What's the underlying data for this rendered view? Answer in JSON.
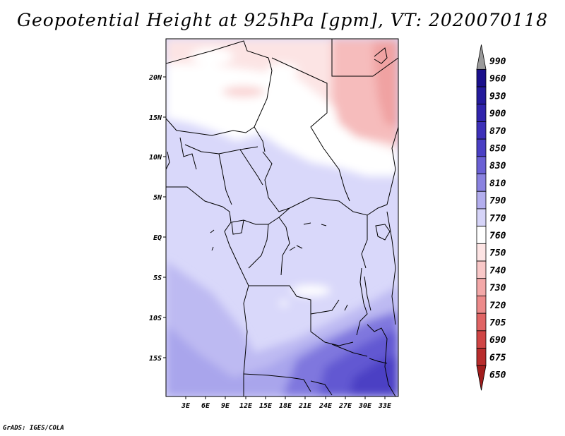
{
  "title": "Geopotential Height at 925hPa [gpm], VT: 2020070118",
  "footer": "GrADS: IGES/COLA",
  "lat_labels": [
    "20N",
    "15N",
    "10N",
    "5N",
    "EQ",
    "5S",
    "10S",
    "15S"
  ],
  "lon_labels": [
    "3E",
    "6E",
    "9E",
    "12E",
    "15E",
    "18E",
    "21E",
    "24E",
    "27E",
    "30E",
    "33E"
  ],
  "colorbar": {
    "levels": [
      "990",
      "960",
      "930",
      "900",
      "870",
      "850",
      "830",
      "810",
      "790",
      "770",
      "760",
      "750",
      "740",
      "730",
      "720",
      "705",
      "690",
      "675",
      "650"
    ],
    "colors": [
      "#9a9a9a",
      "#1a0f8c",
      "#241a9c",
      "#3024ac",
      "#3d30b9",
      "#4a3fc4",
      "#6a60d4",
      "#8a82e0",
      "#b3aeee",
      "#d6d4f8",
      "#ffffff",
      "#fde4e4",
      "#f9c8c8",
      "#f3a8a8",
      "#ec8a8a",
      "#e06464",
      "#d04545",
      "#b82c2c",
      "#a01c1c"
    ]
  }
}
